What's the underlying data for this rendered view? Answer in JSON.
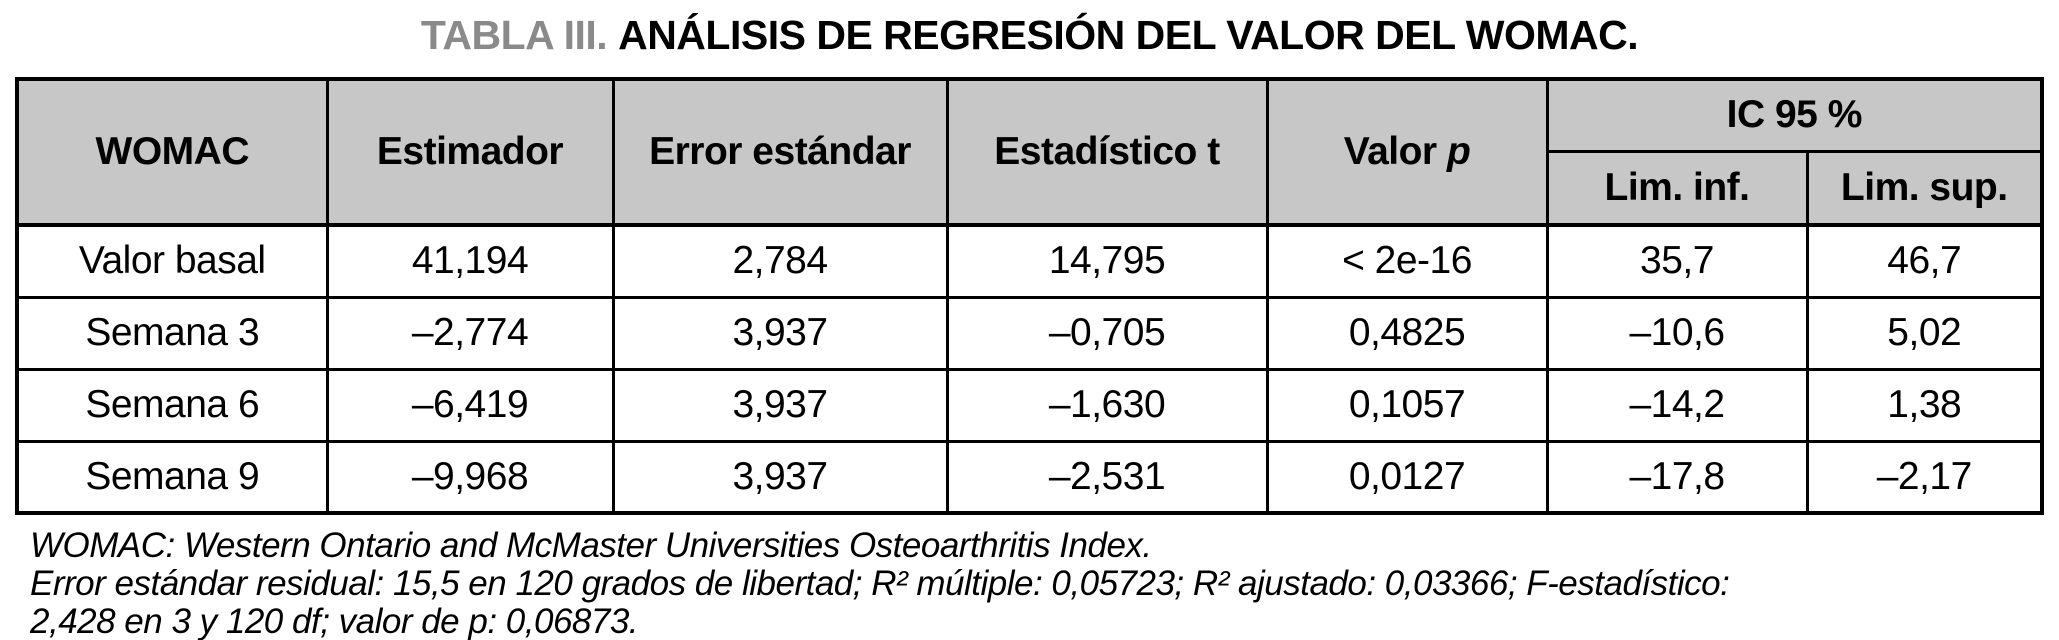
{
  "title": {
    "label": "TABLA III.",
    "text": "ANÁLISIS DE REGRESIÓN DEL VALOR DEL WOMAC."
  },
  "table": {
    "headers": {
      "womac": "WOMAC",
      "estimador": "Estimador",
      "error_estandar": "Error estándar",
      "estadistico_t": "Estadístico t",
      "valor_p_prefix": "Valor",
      "valor_p_italic": "p",
      "ic_group": "IC 95 %",
      "lim_inf": "Lim. inf.",
      "lim_sup": "Lim. sup."
    },
    "rows": [
      {
        "label": "Valor basal",
        "estimador": "41,194",
        "error": "2,784",
        "t": "14,795",
        "p": "< 2e-16",
        "lim_inf": "35,7",
        "lim_sup": "46,7"
      },
      {
        "label": "Semana 3",
        "estimador": "–2,774",
        "error": "3,937",
        "t": "–0,705",
        "p": "0,4825",
        "lim_inf": "–10,6",
        "lim_sup": "5,02"
      },
      {
        "label": "Semana 6",
        "estimador": "–6,419",
        "error": "3,937",
        "t": "–1,630",
        "p": "0,1057",
        "lim_inf": "–14,2",
        "lim_sup": "1,38"
      },
      {
        "label": "Semana 9",
        "estimador": "–9,968",
        "error": "3,937",
        "t": "–2,531",
        "p": "0,0127",
        "lim_inf": "–17,8",
        "lim_sup": "–2,17"
      }
    ]
  },
  "footnotes": {
    "line1": "WOMAC: Western Ontario and McMaster Universities Osteoarthritis Index.",
    "line2": "Error estándar residual: 15,5 en 120 grados de libertad; R² múltiple: 0,05723; R² ajustado: 0,03366; F-estadístico:",
    "line3": "2,428 en 3 y 120 df; valor de p: 0,06873."
  },
  "colors": {
    "header_bg": "#c7c7c7",
    "border": "#000000",
    "title_label": "#8a8a8a"
  }
}
